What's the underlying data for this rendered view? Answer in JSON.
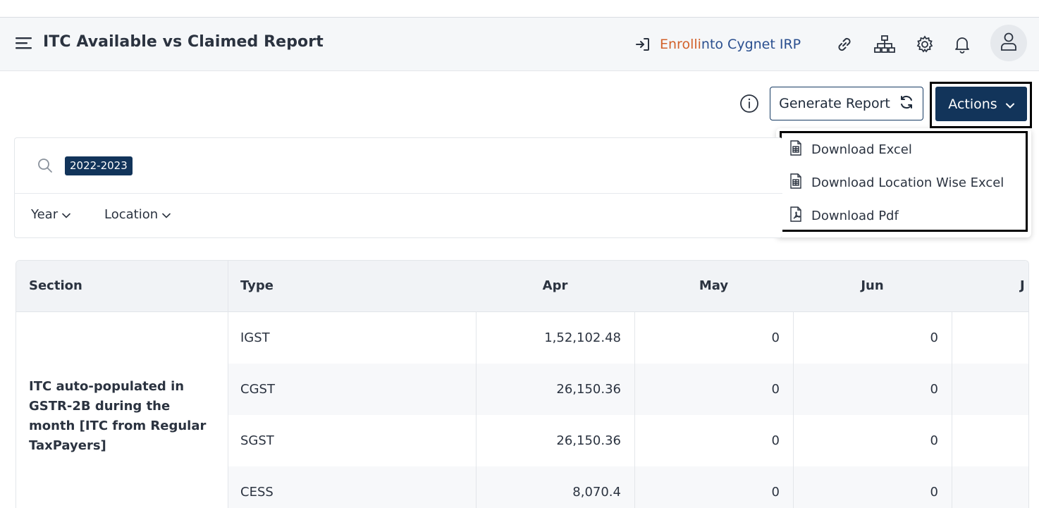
{
  "header": {
    "title": "ITC Available vs Claimed Report",
    "enroll_orange_1": "Enroll ",
    "enroll_orange_2": "i",
    "enroll_blue": "nto Cygnet IRP",
    "icons": [
      "hamburger-icon",
      "login-arrow-icon",
      "link-icon",
      "org-chart-icon",
      "gear-icon",
      "bell-icon",
      "user-icon"
    ]
  },
  "toolbar": {
    "generate_label": "Generate Report",
    "actions_label": "Actions"
  },
  "actions_menu": {
    "items": [
      {
        "label": "Download Excel",
        "icon": "excel-file-icon"
      },
      {
        "label": "Download Location Wise Excel",
        "icon": "excel-file-icon"
      },
      {
        "label": "Download Pdf",
        "icon": "pdf-file-icon"
      }
    ]
  },
  "filters": {
    "selected_year_chip": "2022-2023",
    "year_label": "Year",
    "location_label": "Location"
  },
  "table": {
    "headers": [
      "Section",
      "Type",
      "Apr",
      "May",
      "Jun",
      "J"
    ],
    "section_label": "ITC auto-populated in GSTR-2B during the month [ITC from Regular TaxPayers]",
    "rows": [
      {
        "type": "IGST",
        "apr": "1,52,102.48",
        "may": "0",
        "jun": "0"
      },
      {
        "type": "CGST",
        "apr": "26,150.36",
        "may": "0",
        "jun": "0"
      },
      {
        "type": "SGST",
        "apr": "26,150.36",
        "may": "0",
        "jun": "0"
      },
      {
        "type": "CESS",
        "apr": "8,070.4",
        "may": "0",
        "jun": "0"
      }
    ]
  },
  "colors": {
    "primary": "#12345a",
    "enroll_orange": "#d2612a",
    "enroll_blue": "#2a4f8f",
    "header_bg": "#f5f7f9"
  }
}
